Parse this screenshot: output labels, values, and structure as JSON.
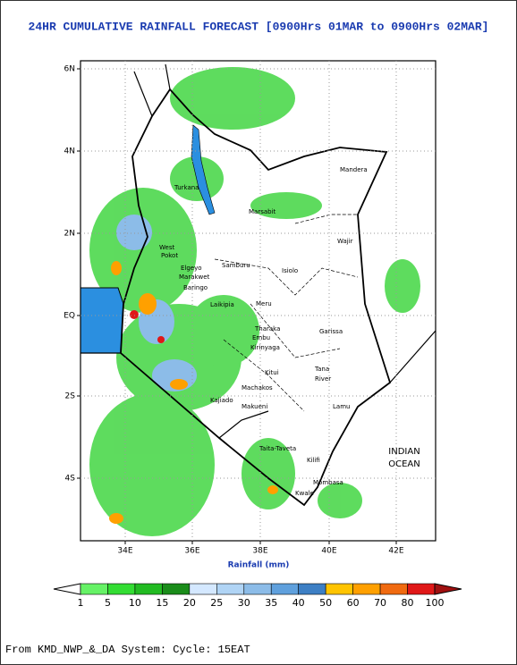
{
  "title": "24HR CUMULATIVE RAINFALL FORECAST [0900Hrs 01MAR to 0900Hrs 02MAR]",
  "map": {
    "lat_labels": [
      "6N",
      "4N",
      "2N",
      "EQ",
      "2S",
      "4S"
    ],
    "lon_labels": [
      "34E",
      "36E",
      "38E",
      "40E",
      "42E"
    ],
    "places": [
      "Mandera",
      "Turkana",
      "Marsabit",
      "Wajir",
      "West",
      "Pokot",
      "Samburu",
      "Isiolo",
      "Elgeyo",
      "Marakwet",
      "Baringo",
      "Laikipia",
      "Meru",
      "Garissa",
      "Tharaka",
      "Embu",
      "Kirinyaga",
      "Kitui",
      "Tana",
      "River",
      "Machakos",
      "Kajiado",
      "Makueni",
      "Lamu",
      "Taita-Taveta",
      "Kilifi",
      "Mombasa",
      "Kwale",
      "INDIAN",
      "OCEAN"
    ],
    "x_label": "Rainfall (mm)"
  },
  "colorbar": {
    "ticks": [
      1,
      5,
      10,
      15,
      20,
      25,
      30,
      35,
      40,
      50,
      60,
      70,
      80,
      100
    ],
    "colors": [
      "#ffffff",
      "#66f266",
      "#33dd33",
      "#22bb22",
      "#1a8c1a",
      "#d4e8ff",
      "#b0d4f5",
      "#8cbce8",
      "#5fa0dd",
      "#3d7fc4",
      "#ffc400",
      "#ffa000",
      "#f06a10",
      "#e01818",
      "#a01010"
    ]
  },
  "footer": "From KMD_NWP_&_DA System: Cycle: 15EAT"
}
